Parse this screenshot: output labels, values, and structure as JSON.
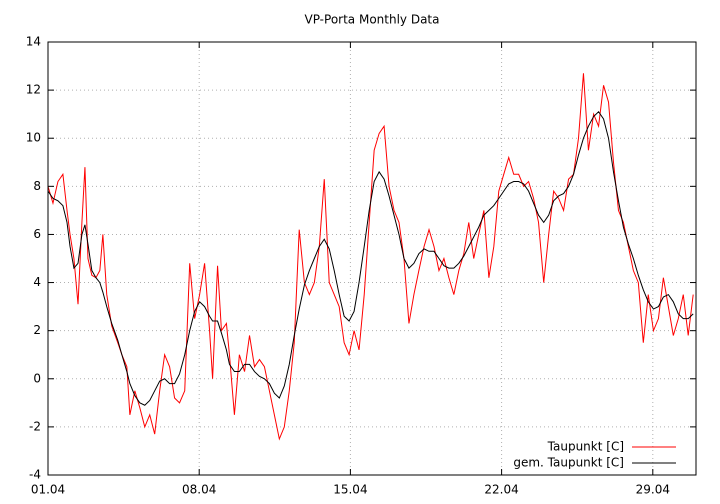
{
  "chart_data": {
    "type": "line",
    "title": "VP-Porta Monthly Data",
    "x": [
      1.0,
      1.23,
      1.46,
      1.69,
      1.88,
      2.02,
      2.2,
      2.39,
      2.57,
      2.71,
      2.85,
      3.03,
      3.22,
      3.4,
      3.54,
      3.72,
      3.95,
      4.23,
      4.42,
      4.65,
      4.79,
      5.02,
      5.25,
      5.48,
      5.71,
      5.94,
      6.17,
      6.4,
      6.63,
      6.86,
      7.09,
      7.33,
      7.56,
      7.79,
      8.02,
      8.25,
      8.48,
      8.62,
      8.85,
      9.03,
      9.26,
      9.4,
      9.63,
      9.86,
      10.1,
      10.33,
      10.56,
      10.79,
      11.02,
      11.25,
      11.48,
      11.71,
      11.94,
      12.17,
      12.4,
      12.63,
      12.87,
      13.1,
      13.33,
      13.56,
      13.79,
      14.02,
      14.25,
      14.48,
      14.71,
      14.94,
      15.17,
      15.4,
      15.64,
      15.87,
      16.1,
      16.33,
      16.56,
      16.79,
      17.02,
      17.25,
      17.48,
      17.71,
      17.94,
      18.17,
      18.41,
      18.64,
      18.87,
      19.1,
      19.33,
      19.56,
      19.79,
      20.02,
      20.25,
      20.48,
      20.71,
      20.94,
      21.18,
      21.41,
      21.64,
      21.87,
      22.1,
      22.33,
      22.56,
      22.79,
      23.02,
      23.25,
      23.48,
      23.71,
      23.95,
      24.18,
      24.41,
      24.64,
      24.87,
      25.1,
      25.33,
      25.56,
      25.79,
      26.02,
      26.26,
      26.49,
      26.72,
      26.95,
      27.18,
      27.41,
      27.64,
      27.87,
      28.1,
      28.33,
      28.56,
      28.79,
      29.03,
      29.26,
      29.49,
      29.72,
      29.95,
      30.18,
      30.41,
      30.64,
      30.87
    ],
    "series": [
      {
        "name": "Taupunkt [C]",
        "color": "#ff0000",
        "values": [
          8.0,
          7.3,
          8.2,
          8.5,
          7.0,
          6.0,
          5.0,
          3.1,
          6.5,
          8.8,
          5.0,
          4.3,
          4.2,
          4.5,
          6.0,
          3.5,
          2.2,
          1.5,
          1.0,
          0.5,
          -1.5,
          -0.5,
          -1.2,
          -2.0,
          -1.5,
          -2.3,
          -0.5,
          1.0,
          0.5,
          -0.8,
          -1.0,
          -0.5,
          4.8,
          2.5,
          3.5,
          4.8,
          2.0,
          0.0,
          4.7,
          2.0,
          2.3,
          1.0,
          -1.5,
          1.0,
          0.3,
          1.8,
          0.5,
          0.8,
          0.5,
          -0.5,
          -1.5,
          -2.5,
          -2.0,
          -0.5,
          1.5,
          6.2,
          4.0,
          3.5,
          4.0,
          5.5,
          8.3,
          4.0,
          3.5,
          3.0,
          1.5,
          1.0,
          2.0,
          1.2,
          3.5,
          6.5,
          9.5,
          10.2,
          10.5,
          8.0,
          7.0,
          6.5,
          5.0,
          2.3,
          3.5,
          4.5,
          5.5,
          6.2,
          5.5,
          4.5,
          5.0,
          4.2,
          3.5,
          4.5,
          5.2,
          6.5,
          5.0,
          6.0,
          7.0,
          4.2,
          5.5,
          7.8,
          8.5,
          9.2,
          8.5,
          8.5,
          8.0,
          8.2,
          7.5,
          6.5,
          4.0,
          6.0,
          7.8,
          7.5,
          7.0,
          8.3,
          8.5,
          10.0,
          12.7,
          9.5,
          11.0,
          10.5,
          12.2,
          11.5,
          9.0,
          7.0,
          6.5,
          5.5,
          4.5,
          4.0,
          1.5,
          3.5,
          2.0,
          2.5,
          4.2,
          3.0,
          1.8,
          2.5,
          3.5,
          1.8,
          3.5
        ]
      },
      {
        "name": "gem. Taupunkt [C]",
        "color": "#000000",
        "values": [
          7.8,
          7.5,
          7.4,
          7.2,
          6.5,
          5.5,
          4.6,
          4.8,
          6.0,
          6.4,
          5.6,
          4.5,
          4.2,
          4.0,
          3.6,
          3.0,
          2.3,
          1.6,
          1.0,
          0.3,
          -0.2,
          -0.7,
          -1.0,
          -1.1,
          -0.9,
          -0.5,
          -0.1,
          0.0,
          -0.2,
          -0.2,
          0.2,
          1.0,
          2.0,
          2.8,
          3.2,
          3.0,
          2.6,
          2.4,
          2.4,
          1.9,
          1.2,
          0.6,
          0.3,
          0.3,
          0.6,
          0.6,
          0.3,
          0.1,
          0.0,
          -0.2,
          -0.6,
          -0.8,
          -0.3,
          0.6,
          1.8,
          2.9,
          3.9,
          4.5,
          5.0,
          5.5,
          5.8,
          5.4,
          4.5,
          3.5,
          2.6,
          2.4,
          2.8,
          4.0,
          5.5,
          7.0,
          8.2,
          8.6,
          8.3,
          7.6,
          6.8,
          6.0,
          5.0,
          4.6,
          4.8,
          5.2,
          5.4,
          5.3,
          5.3,
          5.0,
          4.7,
          4.6,
          4.6,
          4.8,
          5.1,
          5.5,
          5.9,
          6.3,
          6.8,
          7.0,
          7.2,
          7.5,
          7.8,
          8.1,
          8.2,
          8.2,
          8.1,
          7.8,
          7.3,
          6.8,
          6.5,
          6.8,
          7.4,
          7.6,
          7.7,
          8.0,
          8.5,
          9.3,
          10.0,
          10.5,
          10.9,
          11.1,
          10.8,
          10.0,
          8.6,
          7.4,
          6.3,
          5.6,
          5.0,
          4.3,
          3.7,
          3.2,
          2.9,
          3.0,
          3.4,
          3.5,
          3.2,
          2.7,
          2.5,
          2.5,
          2.7
        ]
      }
    ],
    "xlim": [
      1,
      31
    ],
    "xticks": [
      {
        "value": 1,
        "label": "01.04"
      },
      {
        "value": 8,
        "label": "08.04"
      },
      {
        "value": 15,
        "label": "15.04"
      },
      {
        "value": 22,
        "label": "22.04"
      },
      {
        "value": 29,
        "label": "29.04"
      }
    ],
    "ylim": [
      -4,
      14
    ],
    "yticks": [
      -4,
      -2,
      0,
      2,
      4,
      6,
      8,
      10,
      12,
      14
    ],
    "grid": true,
    "legend": "bottom-right"
  }
}
